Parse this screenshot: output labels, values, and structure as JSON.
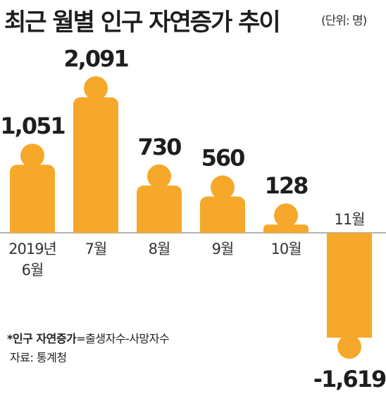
{
  "title": "최근 월별 인구 자연증가 추이",
  "unit": "(단위: 명)",
  "footnote": {
    "term": "*인구 자연증가",
    "definition": "=출생자수-사망자수"
  },
  "source": "자료: 통계청",
  "colors": {
    "bar": "#f5a82a",
    "axis": "#9a9a9a",
    "value_text": "#1e1e1e",
    "label_text": "#333333"
  },
  "chart_data": {
    "type": "bar",
    "categories": [
      [
        "2019년",
        "6월"
      ],
      [
        "7월"
      ],
      [
        "8월"
      ],
      [
        "9월"
      ],
      [
        "10월"
      ],
      [
        "11월"
      ]
    ],
    "values": [
      1051,
      2091,
      730,
      560,
      128,
      -1619
    ],
    "value_labels": [
      "1,051",
      "2,091",
      "730",
      "560",
      "128",
      "-1,619"
    ],
    "title": "최근 월별 인구 자연증가 추이",
    "ylabel": "",
    "xlabel": ""
  }
}
